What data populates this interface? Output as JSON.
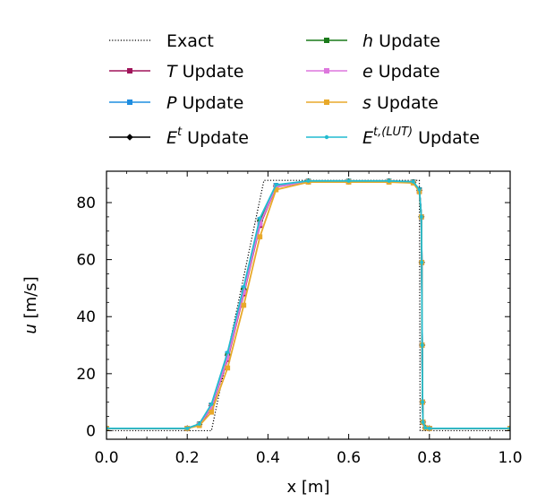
{
  "chart_data": {
    "type": "line",
    "title": "",
    "xlabel": "x [m]",
    "ylabel_symbol": "u",
    "ylabel_unit": " [m/s]",
    "xlim": [
      0.0,
      1.0
    ],
    "ylim": [
      -3,
      91
    ],
    "xticks": [
      0.0,
      0.2,
      0.4,
      0.6,
      0.8,
      1.0
    ],
    "xtick_labels": [
      "0.0",
      "0.2",
      "0.4",
      "0.6",
      "0.8",
      "1.0"
    ],
    "yticks": [
      0,
      20,
      40,
      60,
      80
    ],
    "ytick_labels": [
      "0",
      "20",
      "40",
      "60",
      "80"
    ],
    "grid": false,
    "legend_position": "top",
    "legend_columns": 2,
    "series": [
      {
        "name": "Exact",
        "math_symbol": "",
        "superscript": "",
        "label_rest": "Exact",
        "color": "#000000",
        "dash": "dotted",
        "marker": "none",
        "x": [
          0.0,
          0.26,
          0.39,
          0.775,
          0.777,
          1.0
        ],
        "y": [
          0,
          0,
          87.8,
          87.8,
          0,
          0
        ]
      },
      {
        "name": "T Update",
        "math_symbol": "T",
        "superscript": "",
        "label_rest": " Update",
        "color": "#a0145a",
        "dash": "solid",
        "marker": "square",
        "x": [
          0.0,
          0.2,
          0.23,
          0.26,
          0.3,
          0.34,
          0.38,
          0.42,
          0.5,
          0.6,
          0.7,
          0.76,
          0.775,
          0.78,
          0.781,
          0.782,
          0.783,
          0.784,
          0.79,
          0.8,
          1.0
        ],
        "y": [
          0.8,
          0.8,
          2.0,
          8.0,
          25,
          48,
          72,
          85.5,
          87.3,
          87.3,
          87.3,
          87.0,
          84.0,
          75,
          59,
          30,
          10,
          3.0,
          1.0,
          0.8,
          0.8
        ]
      },
      {
        "name": "P Update",
        "math_symbol": "P",
        "superscript": "",
        "label_rest": " Update",
        "color": "#1f8de0",
        "dash": "solid",
        "marker": "square",
        "x": [
          0.0,
          0.2,
          0.23,
          0.26,
          0.3,
          0.34,
          0.38,
          0.42,
          0.5,
          0.6,
          0.7,
          0.76,
          0.775,
          0.78,
          0.781,
          0.782,
          0.783,
          0.784,
          0.79,
          0.8,
          1.0
        ],
        "y": [
          0.8,
          0.8,
          2.3,
          9.0,
          27,
          50,
          74,
          86.0,
          87.5,
          87.5,
          87.5,
          87.2,
          84.5,
          75,
          59,
          30,
          10,
          3.0,
          1.0,
          0.8,
          0.8
        ]
      },
      {
        "name": "Et Update",
        "math_symbol": "E",
        "superscript": "t",
        "label_rest": " Update",
        "color": "#000000",
        "dash": "solid",
        "marker": "diamond",
        "x": [
          0.0,
          0.2,
          0.23,
          0.26,
          0.3,
          0.34,
          0.38,
          0.42,
          0.5,
          0.6,
          0.7,
          0.76,
          0.775,
          0.78,
          0.781,
          0.782,
          0.783,
          0.784,
          0.79,
          0.8,
          1.0
        ],
        "y": [
          0.8,
          0.8,
          2.2,
          8.8,
          26.5,
          49.5,
          73.5,
          85.8,
          87.4,
          87.4,
          87.4,
          87.1,
          84.3,
          75,
          59,
          30,
          10,
          3.0,
          1.0,
          0.8,
          0.8
        ]
      },
      {
        "name": "h Update",
        "math_symbol": "h",
        "superscript": "",
        "label_rest": " Update",
        "color": "#1a7a1a",
        "dash": "solid",
        "marker": "square",
        "x": [
          0.0,
          0.2,
          0.23,
          0.26,
          0.3,
          0.34,
          0.38,
          0.42,
          0.5,
          0.6,
          0.7,
          0.76,
          0.775,
          0.78,
          0.781,
          0.782,
          0.783,
          0.784,
          0.79,
          0.8,
          1.0
        ],
        "y": [
          0.8,
          0.8,
          2.2,
          8.7,
          26.3,
          49.3,
          73.3,
          85.7,
          87.4,
          87.4,
          87.4,
          87.1,
          84.3,
          75,
          59,
          30,
          10,
          3.0,
          1.0,
          0.8,
          0.8
        ]
      },
      {
        "name": "e Update",
        "math_symbol": "e",
        "superscript": "",
        "label_rest": " Update",
        "color": "#dd77dd",
        "dash": "solid",
        "marker": "square",
        "x": [
          0.0,
          0.2,
          0.23,
          0.26,
          0.3,
          0.34,
          0.38,
          0.42,
          0.5,
          0.6,
          0.7,
          0.76,
          0.775,
          0.78,
          0.781,
          0.782,
          0.783,
          0.784,
          0.79,
          0.8,
          1.0
        ],
        "y": [
          0.8,
          0.8,
          2.1,
          8.3,
          25.5,
          48.5,
          72.5,
          85.6,
          87.3,
          87.3,
          87.3,
          87.0,
          84.0,
          75,
          59,
          30,
          10,
          3.0,
          1.0,
          0.8,
          0.8
        ]
      },
      {
        "name": "s Update",
        "math_symbol": "s",
        "superscript": "",
        "label_rest": " Update",
        "color": "#e8a92a",
        "dash": "solid",
        "marker": "square",
        "x": [
          0.0,
          0.2,
          0.23,
          0.26,
          0.3,
          0.34,
          0.38,
          0.42,
          0.5,
          0.6,
          0.7,
          0.76,
          0.775,
          0.78,
          0.781,
          0.782,
          0.783,
          0.784,
          0.79,
          0.8,
          1.0
        ],
        "y": [
          0.8,
          0.8,
          1.8,
          6.5,
          22,
          44,
          68,
          84.5,
          87.2,
          87.2,
          87.2,
          86.9,
          83.8,
          75,
          59,
          30,
          10,
          3.0,
          1.0,
          0.8,
          0.8
        ]
      },
      {
        "name": "Et,(LUT) Update",
        "math_symbol": "E",
        "superscript": "t,(LUT)",
        "label_rest": " Update",
        "color": "#22bcd0",
        "dash": "solid",
        "marker": "dot",
        "x": [
          0.0,
          0.2,
          0.23,
          0.26,
          0.3,
          0.34,
          0.38,
          0.42,
          0.5,
          0.6,
          0.7,
          0.76,
          0.775,
          0.78,
          0.781,
          0.782,
          0.783,
          0.784,
          0.79,
          0.8,
          1.0
        ],
        "y": [
          0.8,
          0.8,
          2.4,
          9.3,
          27.5,
          50.5,
          74.5,
          86.2,
          87.6,
          87.6,
          87.6,
          87.3,
          84.6,
          75,
          59,
          30,
          10,
          3.0,
          1.0,
          0.8,
          0.8
        ]
      }
    ]
  }
}
